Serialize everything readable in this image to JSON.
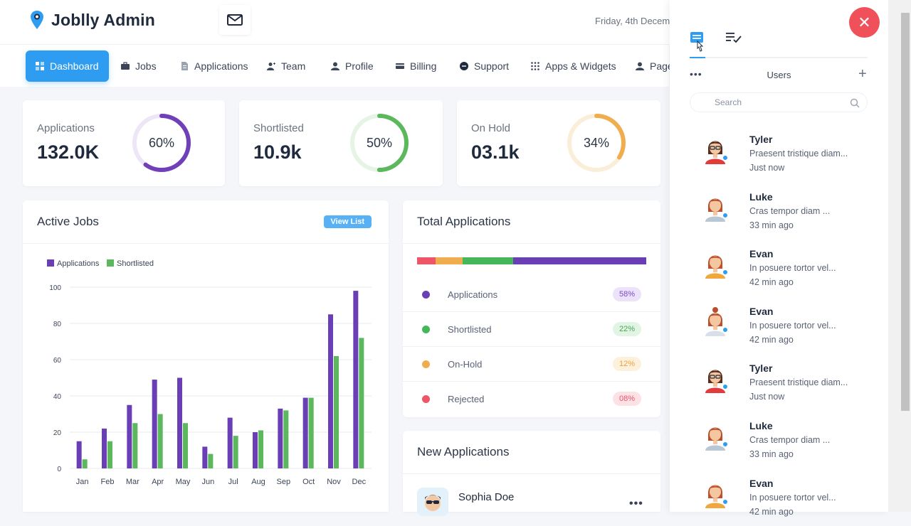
{
  "header": {
    "brand": "Joblly Admin",
    "date": "Friday, 4th Decem"
  },
  "nav": {
    "items": [
      {
        "label": "Dashboard",
        "icon": "dashboard-icon"
      },
      {
        "label": "Jobs",
        "icon": "briefcase-icon"
      },
      {
        "label": "Applications",
        "icon": "document-icon"
      },
      {
        "label": "Team",
        "icon": "team-icon"
      },
      {
        "label": "Profile",
        "icon": "user-icon"
      },
      {
        "label": "Billing",
        "icon": "credit-card-icon"
      },
      {
        "label": "Support",
        "icon": "support-icon"
      },
      {
        "label": "Apps & Widgets",
        "icon": "grid-icon"
      },
      {
        "label": "Page",
        "icon": "user-icon"
      }
    ]
  },
  "stats": [
    {
      "label": "Applications",
      "value": "132.0K",
      "percent": "60%",
      "fraction": 0.6,
      "color": "#7040b8"
    },
    {
      "label": "Shortlisted",
      "value": "10.9k",
      "percent": "50%",
      "fraction": 0.5,
      "color": "#5cb85c"
    },
    {
      "label": "On Hold",
      "value": "03.1k",
      "percent": "34%",
      "fraction": 0.34,
      "color": "#f0ad4e"
    }
  ],
  "active_jobs": {
    "title": "Active Jobs",
    "view_list": "View List"
  },
  "chart_data": {
    "type": "bar",
    "categories": [
      "Jan",
      "Feb",
      "Mar",
      "Apr",
      "May",
      "Jun",
      "Jul",
      "Aug",
      "Sep",
      "Oct",
      "Nov",
      "Dec"
    ],
    "series": [
      {
        "name": "Applications",
        "color": "#6a3fb5",
        "values": [
          15,
          22,
          35,
          49,
          50,
          12,
          28,
          20,
          33,
          39,
          85,
          98
        ]
      },
      {
        "name": "Shortlisted",
        "color": "#5cb85c",
        "values": [
          5,
          15,
          25,
          30,
          25,
          8,
          18,
          21,
          32,
          39,
          62,
          72
        ]
      }
    ],
    "yticks": [
      "0",
      "20",
      "40",
      "60",
      "80",
      "100"
    ],
    "ylim": [
      0,
      100
    ],
    "grid": true,
    "legend": "top-left",
    "title": "",
    "xlabel": "",
    "ylabel": ""
  },
  "total_applications": {
    "title": "Total Applications",
    "rows": [
      {
        "label": "Applications",
        "badge": "58%",
        "fraction": 0.58,
        "color": "#6a3fb5",
        "badge_bg": "#ece2fa",
        "badge_fg": "#7a4cc7"
      },
      {
        "label": "Shortlisted",
        "badge": "22%",
        "fraction": 0.22,
        "color": "#43b75a",
        "badge_bg": "#e2f5e4",
        "badge_fg": "#43a755"
      },
      {
        "label": "On-Hold",
        "badge": "12%",
        "fraction": 0.12,
        "color": "#f0ad4e",
        "badge_bg": "#fdf0dc",
        "badge_fg": "#e9a23b"
      },
      {
        "label": "Rejected",
        "badge": "08%",
        "fraction": 0.08,
        "color": "#ee5566",
        "badge_bg": "#fde2e5",
        "badge_fg": "#e5556a"
      }
    ]
  },
  "new_applications": {
    "title": "New Applications",
    "first_name": "Sophia Doe"
  },
  "drawer": {
    "section_title": "Users",
    "search_placeholder": "Search",
    "users": [
      {
        "name": "Tyler",
        "message": "Praesent tristique diam...",
        "time": "Just now",
        "avatar": "female-glasses"
      },
      {
        "name": "Luke",
        "message": "Cras tempor diam ...",
        "time": "33 min ago",
        "avatar": "female"
      },
      {
        "name": "Evan",
        "message": "In posuere tortor vel...",
        "time": "42 min ago",
        "avatar": "male-beard"
      },
      {
        "name": "Evan",
        "message": "In posuere tortor vel...",
        "time": "42 min ago",
        "avatar": "female-bun"
      },
      {
        "name": "Tyler",
        "message": "Praesent tristique diam...",
        "time": "Just now",
        "avatar": "female-glasses"
      },
      {
        "name": "Luke",
        "message": "Cras tempor diam ...",
        "time": "33 min ago",
        "avatar": "female"
      },
      {
        "name": "Evan",
        "message": "In posuere tortor vel...",
        "time": "42 min ago",
        "avatar": "male-beard"
      }
    ]
  }
}
